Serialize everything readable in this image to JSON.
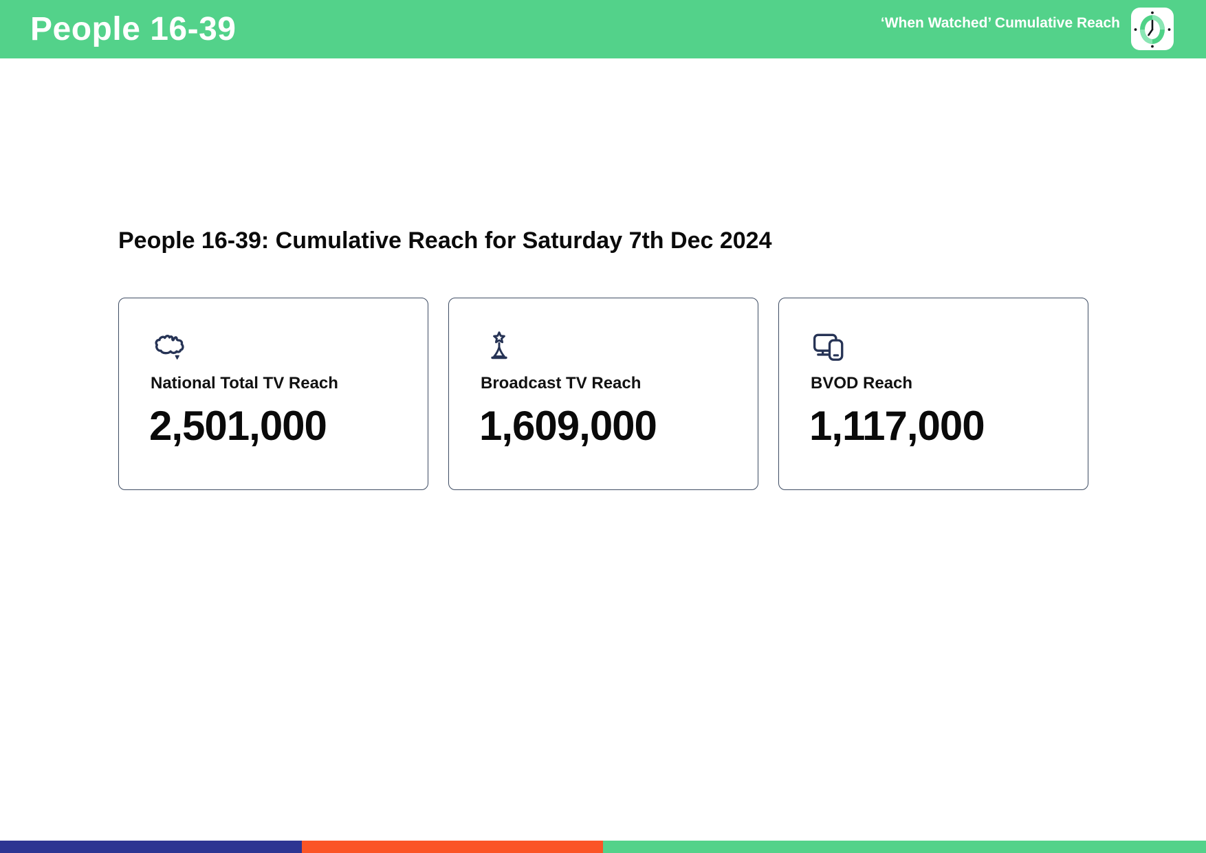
{
  "header": {
    "title": "People 16-39",
    "subtitle": "‘When Watched’ Cumulative Reach"
  },
  "main": {
    "heading": "People 16-39: Cumulative Reach for Saturday 7th Dec 2024",
    "cards": [
      {
        "icon": "australia-map-icon",
        "label": "National Total TV Reach",
        "value": "2,501,000"
      },
      {
        "icon": "broadcast-tower-icon",
        "label": "Broadcast TV Reach",
        "value": "1,609,000"
      },
      {
        "icon": "tv-and-mobile-devices-icon",
        "label": "BVOD Reach",
        "value": "1,117,000"
      }
    ]
  },
  "footer": {
    "segments": [
      {
        "name": "blue-segment",
        "color": "#2d3592",
        "width_pct": 25
      },
      {
        "name": "orange-segment",
        "color": "#fb5426",
        "width_pct": 25
      },
      {
        "name": "green-segment",
        "color": "#53d28a",
        "width_pct": 50
      }
    ]
  },
  "colors": {
    "header_green": "#53d28a",
    "icon_navy": "#263355",
    "card_border": "#3e4c63",
    "text_black": "#0b0b0b"
  }
}
